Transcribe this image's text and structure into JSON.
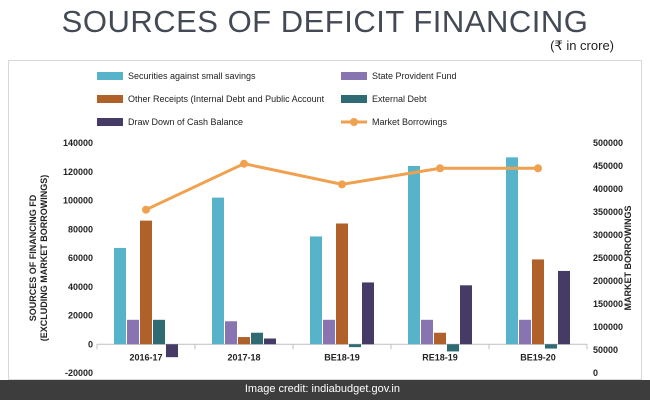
{
  "header": {
    "title": "SOURCES OF DEFICIT FINANCING",
    "unit": "(₹ in crore)"
  },
  "footer": {
    "credit": "Image credit: indiabudget.gov.in"
  },
  "colors": {
    "securities": "#57b3c9",
    "provident": "#8874b0",
    "other_receipts": "#b0612a",
    "external_debt": "#2f6b73",
    "cash_balance": "#453b66",
    "market_borrowings": "#f0a150",
    "credit_bar": "#3d3d3d"
  },
  "chart_data": {
    "type": "bar",
    "title": "SOURCES OF DEFICIT FINANCING",
    "subtitle": "(₹ in crore)",
    "categories": [
      "2016-17",
      "2017-18",
      "BE18-19",
      "RE18-19",
      "BE19-20"
    ],
    "ylabel": "SOURCES OF FINANCING FD (EXCLUDING MARKET BORROWINGS)",
    "ylim": [
      -20000,
      140000
    ],
    "yticks": [
      -20000,
      0,
      20000,
      40000,
      60000,
      80000,
      100000,
      120000,
      140000
    ],
    "y2label": "MARKET BORROWINGS",
    "y2lim": [
      0,
      500000
    ],
    "y2ticks": [
      0,
      50000,
      100000,
      150000,
      200000,
      250000,
      300000,
      350000,
      400000,
      450000,
      500000
    ],
    "series": [
      {
        "name": "Securities against small savings",
        "key": "securities",
        "type": "bar",
        "axis": "left",
        "values": [
          67000,
          102000,
          75000,
          124000,
          130000
        ]
      },
      {
        "name": "State Provident Fund",
        "key": "provident",
        "type": "bar",
        "axis": "left",
        "values": [
          17000,
          16000,
          17000,
          17000,
          17000
        ]
      },
      {
        "name": "Other Receipts (Internal Debt and Public Account",
        "key": "other_receipts",
        "type": "bar",
        "axis": "left",
        "values": [
          86000,
          5000,
          84000,
          8000,
          59000
        ]
      },
      {
        "name": "External Debt",
        "key": "external_debt",
        "type": "bar",
        "axis": "left",
        "values": [
          17000,
          8000,
          -2000,
          -5000,
          -3000
        ]
      },
      {
        "name": "Draw Down of Cash Balance",
        "key": "cash_balance",
        "type": "bar",
        "axis": "left",
        "values": [
          -9000,
          4000,
          43000,
          41000,
          51000
        ]
      },
      {
        "name": "Market Borrowings",
        "key": "market_borrowings",
        "type": "line",
        "axis": "right",
        "values": [
          355000,
          455000,
          410000,
          445000,
          445000
        ]
      }
    ]
  }
}
